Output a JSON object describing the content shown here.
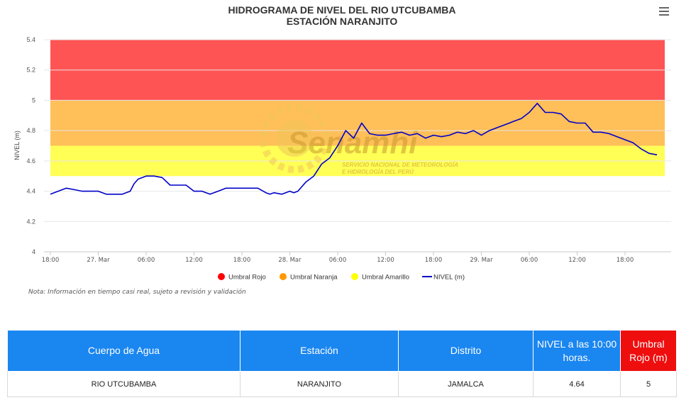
{
  "title": "HIDROGRAMA DE NIVEL DEL RIO UTCUBAMBA",
  "subtitle": "ESTACIÓN NARANJITO",
  "menu_icon": "hamburger-menu-icon",
  "watermark": {
    "brand": "Senamhi",
    "line1": "SERVICIO NACIONAL DE METEOROLOGÍA",
    "line2": "E HIDROLOGÍA DEL PERÚ"
  },
  "note": "Nota: Información en tiempo casi real, sujeto a revisión y validación",
  "chart_data": {
    "type": "line",
    "title": "HIDROGRAMA DE NIVEL DEL RIO UTCUBAMBA",
    "subtitle": "ESTACIÓN NARANJITO",
    "ylabel": "NIVEL (m)",
    "ylim": [
      4,
      5.4
    ],
    "yticks": [
      "4",
      "4.2",
      "4.4",
      "4.6",
      "4.8",
      "5",
      "5.2",
      "5.4"
    ],
    "x_tick_labels": [
      "18:00",
      "27. Mar",
      "06:00",
      "12:00",
      "18:00",
      "28. Mar",
      "06:00",
      "12:00",
      "18:00",
      "29. Mar",
      "06:00",
      "12:00",
      "18:00"
    ],
    "xlim": [
      "26 Mar 18:00",
      "30 Mar 00:00"
    ],
    "grid": true,
    "legend_placement": "bottom-center",
    "bands": [
      {
        "name": "Umbral Rojo",
        "from": 5.0,
        "to": 5.4,
        "color": "#ff5454"
      },
      {
        "name": "Umbral Naranja",
        "from": 4.7,
        "to": 5.0,
        "color": "#ffbf59"
      },
      {
        "name": "Umbral Amarillo",
        "from": 4.5,
        "to": 4.7,
        "color": "#ffff56"
      }
    ],
    "legend": [
      {
        "name": "Umbral Rojo",
        "color": "#ff0000",
        "symbol": "dot"
      },
      {
        "name": "Umbral Naranja",
        "color": "#ff9900",
        "symbol": "dot"
      },
      {
        "name": "Umbral Amarillo",
        "color": "#ffff00",
        "symbol": "dot"
      },
      {
        "name": "NIVEL (m)",
        "color": "#0000c8",
        "symbol": "line"
      }
    ],
    "series": [
      {
        "name": "NIVEL (m)",
        "color": "#0000c8",
        "x_hours_since_26mar_18h": [
          0,
          2,
          3,
          4,
          6,
          7,
          9,
          10,
          10.5,
          11,
          12,
          13,
          14,
          15,
          17,
          18,
          19,
          20,
          21,
          22,
          23,
          24,
          25,
          26,
          27,
          27.5,
          28,
          29,
          30,
          30.5,
          31,
          32,
          33,
          34,
          35,
          36,
          37,
          38,
          39,
          40,
          41,
          42,
          43,
          44,
          45,
          46,
          47,
          48,
          49,
          50,
          51,
          52,
          53,
          54,
          55,
          56,
          57,
          57.5,
          58,
          59,
          60,
          61,
          62,
          63,
          64,
          65,
          66,
          67,
          68,
          69,
          70,
          71,
          72,
          73,
          74,
          75,
          76
        ],
        "values": [
          4.38,
          4.42,
          4.41,
          4.4,
          4.4,
          4.38,
          4.38,
          4.4,
          4.45,
          4.48,
          4.5,
          4.5,
          4.49,
          4.44,
          4.44,
          4.4,
          4.4,
          4.38,
          4.4,
          4.42,
          4.42,
          4.42,
          4.42,
          4.42,
          4.39,
          4.38,
          4.39,
          4.38,
          4.4,
          4.39,
          4.4,
          4.46,
          4.5,
          4.58,
          4.62,
          4.7,
          4.8,
          4.75,
          4.85,
          4.78,
          4.77,
          4.77,
          4.78,
          4.79,
          4.77,
          4.78,
          4.75,
          4.77,
          4.76,
          4.77,
          4.79,
          4.78,
          4.8,
          4.77,
          4.8,
          4.82,
          4.84,
          4.85,
          4.86,
          4.88,
          4.92,
          4.98,
          4.92,
          4.92,
          4.91,
          4.86,
          4.85,
          4.85,
          4.79,
          4.79,
          4.78,
          4.76,
          4.74,
          4.72,
          4.68,
          4.65,
          4.64
        ]
      }
    ]
  },
  "table": {
    "headers": [
      "Cuerpo de Agua",
      "Estación",
      "Distrito",
      "NIVEL a las 10:00 horas.",
      "Umbral Rojo (m)"
    ],
    "rows": [
      [
        "RIO UTCUBAMBA",
        "NARANJITO",
        "JAMALCA",
        "4.64",
        "5"
      ]
    ]
  }
}
